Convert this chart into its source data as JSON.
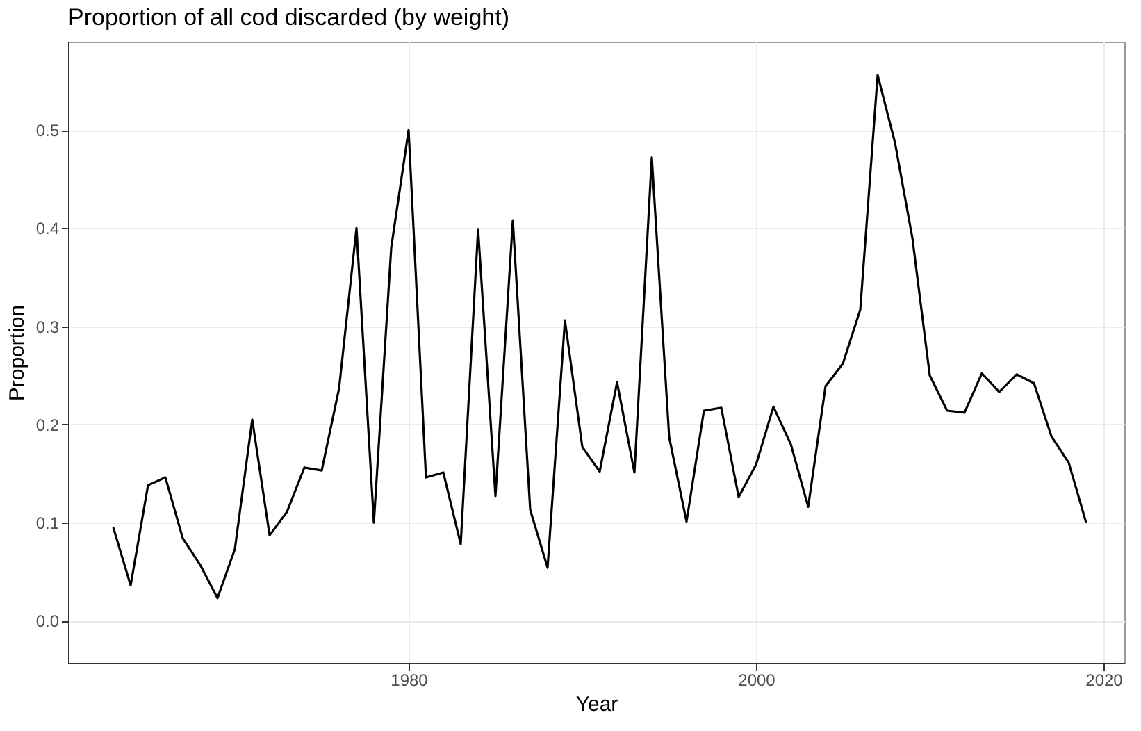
{
  "chart_data": {
    "type": "line",
    "title": "Proportion of all cod discarded (by weight)",
    "xlabel": "Year",
    "ylabel": "Proportion",
    "x": [
      1963,
      1964,
      1965,
      1966,
      1967,
      1968,
      1969,
      1970,
      1971,
      1972,
      1973,
      1974,
      1975,
      1976,
      1977,
      1978,
      1979,
      1980,
      1981,
      1982,
      1983,
      1984,
      1985,
      1986,
      1987,
      1988,
      1989,
      1990,
      1991,
      1992,
      1993,
      1994,
      1995,
      1996,
      1997,
      1998,
      1999,
      2000,
      2001,
      2002,
      2003,
      2004,
      2005,
      2006,
      2007,
      2008,
      2009,
      2010,
      2011,
      2012,
      2013,
      2014,
      2015,
      2016,
      2017,
      2018,
      2019
    ],
    "series": [
      {
        "color": "#000000",
        "values": [
          0.095,
          0.036,
          0.138,
          0.146,
          0.084,
          0.057,
          0.023,
          0.073,
          0.205,
          0.087,
          0.111,
          0.156,
          0.153,
          0.237,
          0.4,
          0.1,
          0.38,
          0.5,
          0.146,
          0.151,
          0.078,
          0.399,
          0.127,
          0.408,
          0.113,
          0.054,
          0.306,
          0.177,
          0.152,
          0.243,
          0.151,
          0.472,
          0.187,
          0.101,
          0.214,
          0.217,
          0.126,
          0.159,
          0.218,
          0.18,
          0.116,
          0.239,
          0.262,
          0.317,
          0.556,
          0.487,
          0.39,
          0.25,
          0.214,
          0.212,
          0.252,
          0.233,
          0.251,
          0.242,
          0.188,
          0.161,
          0.1
        ]
      }
    ],
    "xlim": [
      1960.4,
      2021.2
    ],
    "xticks": [
      1980,
      2000,
      2020
    ],
    "ylim": [
      -0.043,
      0.59
    ],
    "yticks": [
      {
        "value": 0,
        "label": "0.0"
      },
      0.1,
      0.2,
      0.3,
      0.4,
      0.5
    ],
    "grid": true,
    "legend": false,
    "marker": "none",
    "line_style": "solid"
  }
}
